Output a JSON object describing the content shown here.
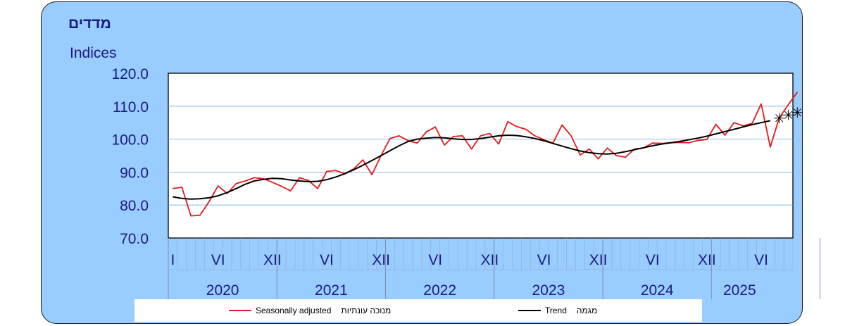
{
  "title_hebrew": "מדדים",
  "title_english": "Indices",
  "legend": {
    "seasonal": {
      "english": "Seasonally adjusted",
      "hebrew": "מנוכה עונתיות",
      "color": "#e41a1c"
    },
    "trend": {
      "english": "Trend",
      "hebrew": "מגמה",
      "color": "#000000"
    }
  },
  "chart_data": {
    "type": "line",
    "ylim": [
      70,
      120
    ],
    "y_ticks": [
      "70.0",
      "80.0",
      "90.0",
      "100.0",
      "110.0",
      "120.0"
    ],
    "grid": true,
    "month_labels": [
      {
        "label": "I",
        "month_index": 0
      },
      {
        "label": "VI",
        "month_index": 5
      },
      {
        "label": "XII",
        "month_index": 11
      },
      {
        "label": "VI",
        "month_index": 17
      },
      {
        "label": "XII",
        "month_index": 23
      },
      {
        "label": "VI",
        "month_index": 29
      },
      {
        "label": "XII",
        "month_index": 35
      },
      {
        "label": "VI",
        "month_index": 41
      },
      {
        "label": "XII",
        "month_index": 47
      },
      {
        "label": "VI",
        "month_index": 53
      },
      {
        "label": "XII",
        "month_index": 59
      },
      {
        "label": "VI",
        "month_index": 65
      }
    ],
    "years": [
      "2020",
      "2021",
      "2022",
      "2023",
      "2024",
      "2025"
    ],
    "start_month": "2020-01",
    "series": [
      {
        "name": "Seasonally adjusted",
        "color": "#e41a1c",
        "values": [
          85.0,
          85.4,
          76.7,
          76.9,
          81.0,
          85.8,
          83.5,
          86.5,
          87.3,
          88.3,
          88.0,
          86.9,
          85.7,
          84.3,
          88.3,
          87.4,
          85.0,
          90.2,
          90.5,
          89.5,
          91.0,
          93.7,
          89.2,
          95.0,
          100.2,
          101.0,
          99.5,
          98.8,
          102.2,
          103.7,
          98.2,
          100.8,
          101.0,
          97.0,
          101.0,
          101.7,
          98.5,
          105.3,
          103.8,
          103.0,
          101.0,
          99.8,
          98.8,
          104.3,
          101.0,
          95.2,
          97.0,
          94.0,
          97.3,
          95.0,
          94.5,
          97.0,
          97.3,
          98.8,
          98.7,
          98.9,
          99.0,
          98.9,
          99.6,
          99.9,
          104.5,
          101.2,
          105.0,
          104.0,
          104.8,
          110.7,
          97.6,
          106.5,
          110.5,
          114.3
        ]
      },
      {
        "name": "Trend",
        "color": "#000000",
        "values": [
          82.5,
          82.0,
          81.8,
          81.9,
          82.2,
          82.8,
          83.8,
          85.0,
          86.3,
          87.3,
          87.8,
          88.1,
          88.0,
          87.6,
          87.3,
          87.1,
          87.2,
          87.7,
          88.5,
          89.5,
          90.7,
          92.1,
          93.5,
          95.0,
          96.5,
          98.0,
          99.3,
          100.0,
          100.3,
          100.5,
          100.4,
          100.1,
          99.9,
          99.9,
          100.2,
          100.6,
          101.0,
          101.2,
          101.1,
          100.7,
          100.2,
          99.5,
          98.7,
          97.9,
          97.1,
          96.4,
          95.9,
          95.6,
          95.5,
          95.7,
          96.2,
          96.8,
          97.4,
          98.0,
          98.5,
          98.9,
          99.3,
          99.8,
          100.3,
          100.9,
          101.6,
          102.3,
          103.0,
          103.7,
          104.4,
          105.0,
          105.6
        ],
        "uncertain_tail": [
          106.5,
          107.5,
          108.3
        ]
      }
    ]
  }
}
